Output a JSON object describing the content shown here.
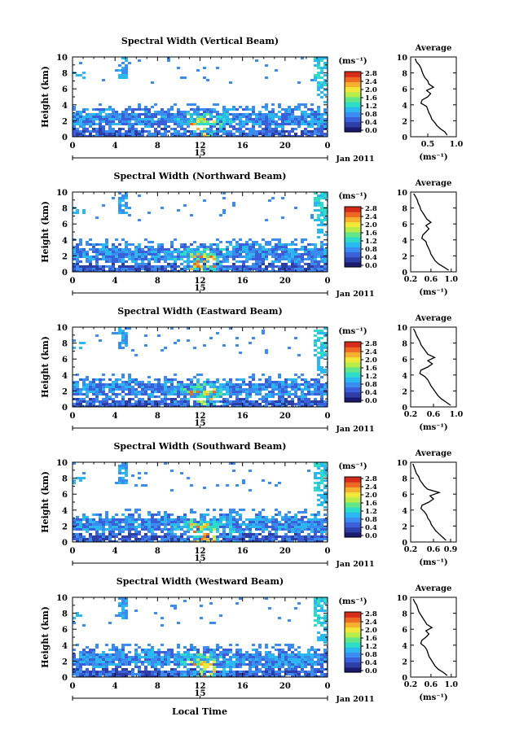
{
  "figure": {
    "xlabel": "Local Time",
    "date_label": "Jan 2011",
    "day_label": "15",
    "colorbar_unit": "(ms⁻¹)",
    "avg_title": "Average",
    "avg_xlabel": "(ms⁻¹)",
    "colors": {
      "cmap": [
        "#1a1a6e",
        "#2d3ea6",
        "#3a5fd9",
        "#3b8cf0",
        "#2bb8f0",
        "#2fdcc8",
        "#63e68a",
        "#b7ec4a",
        "#f2e83a",
        "#f6b030",
        "#ee6a24",
        "#d72c1c"
      ]
    }
  },
  "chart_data": [
    {
      "type": "heatmap",
      "title": "Spectral Width (Vertical Beam)",
      "ylabel": "Height (km)",
      "ylim": [
        0,
        10
      ],
      "yticks": [
        "0",
        "2",
        "4",
        "6",
        "8",
        "10"
      ],
      "xlim": [
        0,
        24
      ],
      "xticks": [
        "0",
        "4",
        "8",
        "12",
        "16",
        "20",
        "0"
      ],
      "colorbar_ticks": [
        "0.0",
        "0.4",
        "0.8",
        "1.2",
        "1.6",
        "2.0",
        "2.4",
        "2.8"
      ],
      "average": {
        "xlim": [
          0.2,
          1.0
        ],
        "xticks": [
          "0.5",
          "1.0"
        ],
        "x_tick_values": [
          0.5,
          1.0
        ],
        "height": [
          0.2,
          0.6,
          1.0,
          1.4,
          1.8,
          2.2,
          2.6,
          3.0,
          3.4,
          3.8,
          4.2,
          4.6,
          5.0,
          5.4,
          5.8,
          6.2,
          6.6,
          7.0,
          7.4,
          7.8,
          8.2,
          8.6,
          9.0,
          9.4,
          9.8
        ],
        "width": [
          0.84,
          0.8,
          0.72,
          0.66,
          0.62,
          0.57,
          0.55,
          0.52,
          0.5,
          0.48,
          0.38,
          0.4,
          0.5,
          0.55,
          0.48,
          0.6,
          0.52,
          0.5,
          0.45,
          0.42,
          0.4,
          0.38,
          0.35,
          0.3,
          0.28
        ]
      }
    },
    {
      "type": "heatmap",
      "title": "Spectral Width (Northward Beam)",
      "ylabel": "Height (km)",
      "ylim": [
        0,
        10
      ],
      "yticks": [
        "0",
        "2",
        "4",
        "6",
        "8",
        "10"
      ],
      "xlim": [
        0,
        24
      ],
      "xticks": [
        "0",
        "4",
        "8",
        "12",
        "16",
        "20",
        "0"
      ],
      "colorbar_ticks": [
        "0.0",
        "0.4",
        "0.8",
        "1.2",
        "1.6",
        "2.0",
        "2.4",
        "2.8"
      ],
      "average": {
        "xlim": [
          0.2,
          1.1
        ],
        "xticks": [
          "0.2",
          "0.6",
          "1.0"
        ],
        "x_tick_values": [
          0.2,
          0.6,
          1.0
        ],
        "height": [
          0.2,
          0.6,
          1.0,
          1.4,
          1.8,
          2.2,
          2.6,
          3.0,
          3.4,
          3.8,
          4.2,
          4.6,
          5.0,
          5.4,
          5.8,
          6.2,
          6.6,
          7.0,
          7.4,
          7.8,
          8.2,
          8.6,
          9.0,
          9.4,
          9.8
        ],
        "width": [
          0.95,
          0.85,
          0.75,
          0.68,
          0.64,
          0.6,
          0.58,
          0.55,
          0.52,
          0.5,
          0.42,
          0.44,
          0.5,
          0.56,
          0.5,
          0.6,
          0.52,
          0.48,
          0.44,
          0.4,
          0.38,
          0.35,
          0.33,
          0.3,
          0.26
        ]
      }
    },
    {
      "type": "heatmap",
      "title": "Spectral Width (Eastward Beam)",
      "ylabel": "Height (km)",
      "ylim": [
        0,
        10
      ],
      "yticks": [
        "0",
        "2",
        "4",
        "6",
        "8",
        "10"
      ],
      "xlim": [
        0,
        24
      ],
      "xticks": [
        "0",
        "4",
        "8",
        "12",
        "16",
        "20",
        "0"
      ],
      "colorbar_ticks": [
        "0.0",
        "0.4",
        "0.8",
        "1.2",
        "1.6",
        "2.0",
        "2.4",
        "2.8"
      ],
      "average": {
        "xlim": [
          0.2,
          1.0
        ],
        "xticks": [
          "0.2",
          "0.6",
          "1.0"
        ],
        "x_tick_values": [
          0.2,
          0.6,
          1.0
        ],
        "height": [
          0.2,
          0.6,
          1.0,
          1.4,
          1.8,
          2.2,
          2.6,
          3.0,
          3.4,
          3.8,
          4.2,
          4.6,
          5.0,
          5.4,
          5.8,
          6.2,
          6.6,
          7.0,
          7.4,
          7.8,
          8.2,
          8.6,
          9.0,
          9.4,
          9.8
        ],
        "width": [
          0.9,
          0.82,
          0.74,
          0.68,
          0.64,
          0.6,
          0.56,
          0.53,
          0.5,
          0.45,
          0.36,
          0.38,
          0.5,
          0.58,
          0.5,
          0.62,
          0.5,
          0.46,
          0.42,
          0.38,
          0.36,
          0.33,
          0.3,
          0.28,
          0.25
        ]
      }
    },
    {
      "type": "heatmap",
      "title": "Spectral Width (Southward Beam)",
      "ylabel": "Height (km)",
      "ylim": [
        0,
        10
      ],
      "yticks": [
        "0",
        "2",
        "4",
        "6",
        "8",
        "10"
      ],
      "xlim": [
        0,
        24
      ],
      "xticks": [
        "0",
        "4",
        "8",
        "12",
        "16",
        "20",
        "0"
      ],
      "colorbar_ticks": [
        "0.0",
        "0.4",
        "0.8",
        "1.2",
        "1.6",
        "2.0",
        "2.4",
        "2.8"
      ],
      "average": {
        "xlim": [
          0.2,
          1.0
        ],
        "xticks": [
          "0.2",
          "0.6",
          "0.9"
        ],
        "x_tick_values": [
          0.2,
          0.6,
          0.9
        ],
        "height": [
          0.2,
          0.6,
          1.0,
          1.4,
          1.8,
          2.2,
          2.6,
          3.0,
          3.4,
          3.8,
          4.2,
          4.6,
          5.0,
          5.4,
          5.8,
          6.2,
          6.6,
          7.0,
          7.4,
          7.8,
          8.2,
          8.6,
          9.0,
          9.4,
          9.8
        ],
        "width": [
          0.82,
          0.76,
          0.7,
          0.64,
          0.6,
          0.56,
          0.54,
          0.5,
          0.48,
          0.44,
          0.38,
          0.4,
          0.52,
          0.6,
          0.54,
          0.7,
          0.5,
          0.44,
          0.4,
          0.36,
          0.34,
          0.3,
          0.28,
          0.26,
          0.24
        ]
      }
    },
    {
      "type": "heatmap",
      "title": "Spectral Width (Westward Beam)",
      "ylabel": "Height (km)",
      "ylim": [
        0,
        10
      ],
      "yticks": [
        "0",
        "2",
        "4",
        "6",
        "8",
        "10"
      ],
      "xlim": [
        0,
        24
      ],
      "xticks": [
        "0",
        "4",
        "8",
        "12",
        "16",
        "20",
        "0"
      ],
      "colorbar_ticks": [
        "0.0",
        "0.4",
        "0.8",
        "1.2",
        "1.6",
        "2.0",
        "2.4",
        "2.8"
      ],
      "average": {
        "xlim": [
          0.2,
          1.1
        ],
        "xticks": [
          "0.2",
          "0.6",
          "1.0"
        ],
        "x_tick_values": [
          0.2,
          0.6,
          1.0
        ],
        "height": [
          0.2,
          0.6,
          1.0,
          1.4,
          1.8,
          2.2,
          2.6,
          3.0,
          3.4,
          3.8,
          4.2,
          4.6,
          5.0,
          5.4,
          5.8,
          6.2,
          6.6,
          7.0,
          7.4,
          7.8,
          8.2,
          8.6,
          9.0,
          9.4,
          9.8
        ],
        "width": [
          0.92,
          0.84,
          0.74,
          0.68,
          0.64,
          0.6,
          0.56,
          0.54,
          0.52,
          0.48,
          0.4,
          0.42,
          0.5,
          0.56,
          0.5,
          0.62,
          0.52,
          0.48,
          0.44,
          0.4,
          0.36,
          0.34,
          0.32,
          0.28,
          0.25
        ]
      }
    }
  ]
}
